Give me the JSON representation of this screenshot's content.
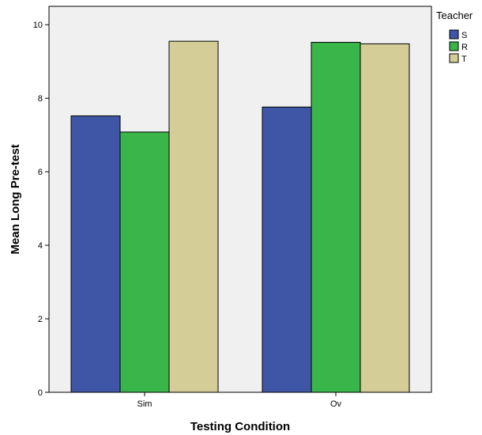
{
  "chart_data": {
    "type": "bar",
    "title": "",
    "xlabel": "Testing Condition",
    "ylabel": "Mean Long Pre-test",
    "categories": [
      "Sim",
      "Ov"
    ],
    "series": [
      {
        "name": "S",
        "values": [
          7.52,
          7.76
        ],
        "color": "#3f56a6"
      },
      {
        "name": "R",
        "values": [
          7.08,
          9.52
        ],
        "color": "#3ab54a"
      },
      {
        "name": "T",
        "values": [
          9.55,
          9.48
        ],
        "color": "#d4cd98"
      }
    ],
    "ylim": [
      0,
      10.5
    ],
    "yticks": [
      0,
      2,
      4,
      6,
      8,
      10
    ],
    "grid": false,
    "legend": {
      "title": "Teacher",
      "placement": "right"
    },
    "plot_background": "#f0f0f0",
    "bar_outline": "#000000"
  }
}
